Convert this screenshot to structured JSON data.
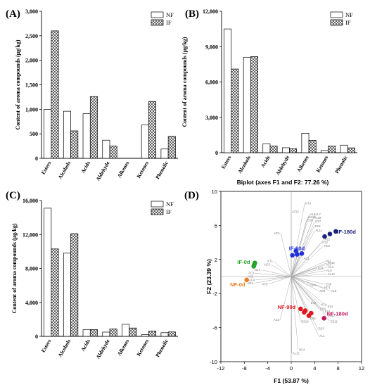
{
  "chart_data": [
    {
      "type": "bar",
      "panel_label": "(A)",
      "categories": [
        "Esters",
        "Alcohols",
        "Acids",
        "Aldehyde",
        "Alkenes",
        "Ketones",
        "Phenolic"
      ],
      "series": [
        {
          "name": "NF",
          "values": [
            1000,
            960,
            910,
            370,
            0,
            680,
            190
          ]
        },
        {
          "name": "IF",
          "values": [
            2600,
            560,
            1260,
            250,
            0,
            1160,
            450
          ]
        }
      ],
      "ylabel": "Content of aroma compounds (μg/kg)",
      "ylim": [
        0,
        3000
      ],
      "yticks": [
        "0",
        "500",
        "1,000",
        "1,500",
        "2,000",
        "2,500",
        "3,000"
      ],
      "legend": "top-right"
    },
    {
      "type": "bar",
      "panel_label": "(B)",
      "categories": [
        "Esters",
        "Alcohols",
        "Acids",
        "Aldehyde",
        "Alkenes",
        "Ketones",
        "Phenolic"
      ],
      "series": [
        {
          "name": "NF",
          "values": [
            10500,
            8100,
            760,
            420,
            1650,
            190,
            640
          ]
        },
        {
          "name": "IF",
          "values": [
            7100,
            8150,
            560,
            340,
            1050,
            560,
            410
          ]
        }
      ],
      "ylabel": "Content of aroma compounds (μg/kg)",
      "ylim": [
        0,
        12000
      ],
      "yticks": [
        "0",
        "3,000",
        "6,000",
        "9,000",
        "12,000"
      ],
      "legend": "top-right"
    },
    {
      "type": "bar",
      "panel_label": "(C)",
      "categories": [
        "Esters",
        "Alcohols",
        "Acids",
        "Aldehyde",
        "Alkenes",
        "Ketones",
        "Phenolic"
      ],
      "series": [
        {
          "name": "NF",
          "values": [
            15100,
            9800,
            780,
            500,
            1420,
            200,
            430
          ]
        },
        {
          "name": "IF",
          "values": [
            10300,
            12100,
            800,
            880,
            980,
            620,
            520
          ]
        }
      ],
      "ylabel": "Content of aroma compounds (μg/kg)",
      "ylim": [
        0,
        16000
      ],
      "yticks": [
        "0",
        "4,000",
        "8,000",
        "12,000",
        "16,000"
      ],
      "legend": "top-right"
    },
    {
      "type": "scatter",
      "panel_label": "(D)",
      "title": "Biplot (axes F1 and F2: 77.26 %)",
      "xlabel": "F1 (53.87 %)",
      "ylabel": "F2 (23.39 %)",
      "xlim": [
        -12,
        12
      ],
      "ylim": [
        -10,
        10
      ],
      "xticks": [
        -12,
        -8,
        -4,
        0,
        4,
        8,
        12
      ],
      "yticks": [
        -10,
        -6,
        -2,
        2,
        6,
        10
      ],
      "groups": [
        {
          "name": "IF-180d",
          "color": "#1a237e",
          "points": [
            [
              5.7,
              4.7
            ],
            [
              6.6,
              5.0
            ],
            [
              7.6,
              5.3
            ]
          ]
        },
        {
          "name": "IF-90d",
          "color": "#2130d8",
          "points": [
            [
              0.2,
              2.5
            ],
            [
              1.0,
              2.6
            ],
            [
              1.8,
              2.7
            ],
            [
              0.8,
              3.0
            ]
          ]
        },
        {
          "name": "IF-0d",
          "color": "#2aa32a",
          "points": [
            [
              -6.4,
              1.2
            ],
            [
              -6.3,
              1.4
            ],
            [
              -6.2,
              1.6
            ]
          ]
        },
        {
          "name": "NF-0d",
          "color": "#f07d1e",
          "points": [
            [
              -7.6,
              -0.4
            ]
          ]
        },
        {
          "name": "NF-90d",
          "color": "#e0191f",
          "points": [
            [
              1.6,
              -3.8
            ],
            [
              2.4,
              -4.0
            ],
            [
              3.0,
              -4.6
            ],
            [
              2.2,
              -4.2
            ],
            [
              3.4,
              -4.3
            ]
          ]
        },
        {
          "name": "NF-180d",
          "color": "#c2185b",
          "points": [
            [
              5.6,
              -4.9
            ]
          ]
        }
      ],
      "variables": [
        {
          "label": "KT3",
          "x": 2.3,
          "y": 8.6
        },
        {
          "label": "AT22",
          "x": 0.0,
          "y": 7.6
        },
        {
          "label": "AL5",
          "x": 3.1,
          "y": 7.3
        },
        {
          "label": "AL7",
          "x": 4.0,
          "y": 7.3
        },
        {
          "label": "ES13",
          "x": 2.8,
          "y": 7.0
        },
        {
          "label": "AL18",
          "x": 3.8,
          "y": 6.9
        },
        {
          "label": "ES8",
          "x": 2.6,
          "y": 6.6
        },
        {
          "label": "ES7",
          "x": 4.0,
          "y": 6.5
        },
        {
          "label": "ES5",
          "x": 3.9,
          "y": 5.9
        },
        {
          "label": "AL11",
          "x": 4.0,
          "y": 5.4
        },
        {
          "label": "HC1",
          "x": -1.8,
          "y": 5.1
        },
        {
          "label": "AL2",
          "x": 5.6,
          "y": 4.4
        },
        {
          "label": "KT2",
          "x": 5.2,
          "y": 4.0
        },
        {
          "label": "HC2",
          "x": 5.5,
          "y": 3.6
        },
        {
          "label": "AC1",
          "x": 2.0,
          "y": 2.1
        },
        {
          "label": "KT1",
          "x": -3.0,
          "y": 1.8
        },
        {
          "label": "HC3",
          "x": -3.5,
          "y": 1.4
        },
        {
          "label": "PA1",
          "x": 5.8,
          "y": 1.8
        },
        {
          "label": "PA12",
          "x": 6.1,
          "y": 1.6
        },
        {
          "label": "AL4",
          "x": 5.8,
          "y": 1.4
        },
        {
          "label": "AL3",
          "x": 6.2,
          "y": 1.1
        },
        {
          "label": "AL6",
          "x": 4.4,
          "y": 1.0
        },
        {
          "label": "AL9",
          "x": 5.9,
          "y": 0.7
        },
        {
          "label": "AL13",
          "x": 6.1,
          "y": 0.3
        },
        {
          "label": "AD1",
          "x": -5.2,
          "y": 0.8
        },
        {
          "label": "AC3",
          "x": -6.2,
          "y": 0.4
        },
        {
          "label": "AC2",
          "x": -6.3,
          "y": 0.0
        },
        {
          "label": "AC4",
          "x": -6.1,
          "y": -0.4
        },
        {
          "label": "AD3",
          "x": -6.4,
          "y": -0.8
        },
        {
          "label": "KT5",
          "x": -3.9,
          "y": -0.9
        },
        {
          "label": "AD4",
          "x": 3.1,
          "y": -1.0
        },
        {
          "label": "ES6",
          "x": 5.8,
          "y": -0.9
        },
        {
          "label": "HC4",
          "x": 5.5,
          "y": -1.3
        },
        {
          "label": "AD2",
          "x": 4.7,
          "y": -1.7
        },
        {
          "label": "AL8",
          "x": 6.7,
          "y": -1.7
        },
        {
          "label": "ES4",
          "x": 3.2,
          "y": -3.1
        },
        {
          "label": "KT4",
          "x": 5.0,
          "y": -3.3
        },
        {
          "label": "ES2",
          "x": 6.1,
          "y": -3.5
        },
        {
          "label": "ES9",
          "x": 4.8,
          "y": -3.8
        },
        {
          "label": "ES1",
          "x": 5.6,
          "y": -4.1
        },
        {
          "label": "ES6",
          "x": 3.1,
          "y": -4.9
        },
        {
          "label": "AC5",
          "x": -1.9,
          "y": -5.1
        },
        {
          "label": "ES10",
          "x": 1.6,
          "y": -5.3
        },
        {
          "label": "ES12",
          "x": 6.1,
          "y": -4.6
        },
        {
          "label": "ES11",
          "x": 6.6,
          "y": -5.3
        },
        {
          "label": "ES3",
          "x": 4.5,
          "y": -6.1
        },
        {
          "label": "AL1",
          "x": 4.7,
          "y": -7.0
        },
        {
          "label": "HC4",
          "x": 1.2,
          "y": -8.6
        },
        {
          "label": "AL12",
          "x": 0.1,
          "y": -9.0
        }
      ]
    }
  ]
}
